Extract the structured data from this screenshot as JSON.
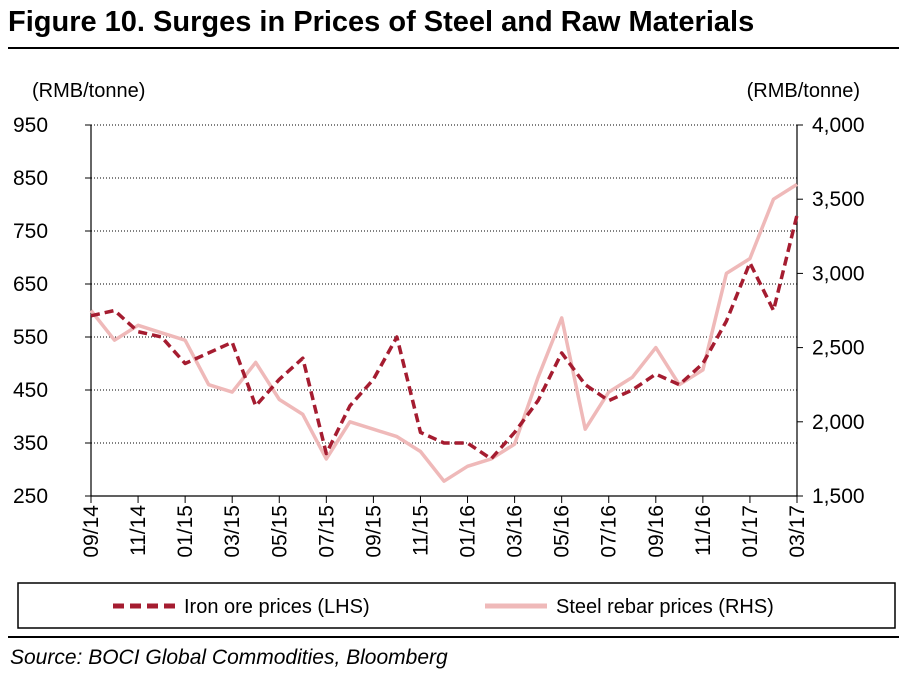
{
  "figure": {
    "title": "Figure 10. Surges in Prices of Steel and Raw Materials",
    "source": "Source: BOCI Global Commodities, Bloomberg"
  },
  "colors": {
    "iron_ore": "#a51c30",
    "rebar": "#efb9b9",
    "grid": "#000000"
  },
  "chart_data": {
    "type": "line",
    "title": "Surges in Prices of Steel and Raw Materials",
    "left_unit": "(RMB/tonne)",
    "right_unit": "(RMB/tonne)",
    "left_ylim": [
      250,
      950
    ],
    "left_ticks": [
      "950",
      "850",
      "750",
      "650",
      "550",
      "450",
      "350",
      "250"
    ],
    "right_ylim": [
      1500,
      4000
    ],
    "right_ticks": [
      "4,000",
      "3,500",
      "3,000",
      "2,500",
      "2,000",
      "1,500"
    ],
    "x_range": [
      "2014-09",
      "2017-03"
    ],
    "x_ticks": [
      "09/14",
      "11/14",
      "01/15",
      "03/15",
      "05/15",
      "07/15",
      "09/15",
      "11/15",
      "01/16",
      "03/16",
      "05/16",
      "07/16",
      "09/16",
      "11/16",
      "01/17",
      "03/17"
    ],
    "grid": "horizontal dotted",
    "legend_position": "bottom",
    "series": [
      {
        "name": "Iron ore prices (LHS)",
        "axis": "left",
        "style": "dashed",
        "x": [
          "2014-09",
          "2014-10",
          "2014-11",
          "2014-12",
          "2015-01",
          "2015-02",
          "2015-03",
          "2015-04",
          "2015-05",
          "2015-06",
          "2015-07",
          "2015-08",
          "2015-09",
          "2015-10",
          "2015-11",
          "2015-12",
          "2016-01",
          "2016-02",
          "2016-03",
          "2016-04",
          "2016-05",
          "2016-06",
          "2016-07",
          "2016-08",
          "2016-09",
          "2016-10",
          "2016-11",
          "2016-12",
          "2017-01",
          "2017-02",
          "2017-03"
        ],
        "values": [
          590,
          600,
          560,
          550,
          500,
          520,
          540,
          420,
          470,
          510,
          330,
          420,
          470,
          550,
          370,
          350,
          350,
          320,
          370,
          430,
          520,
          460,
          430,
          450,
          480,
          460,
          500,
          580,
          690,
          600,
          780
        ]
      },
      {
        "name": "Steel rebar prices (RHS)",
        "axis": "right",
        "style": "solid",
        "x": [
          "2014-09",
          "2014-10",
          "2014-11",
          "2014-12",
          "2015-01",
          "2015-02",
          "2015-03",
          "2015-04",
          "2015-05",
          "2015-06",
          "2015-07",
          "2015-08",
          "2015-09",
          "2015-10",
          "2015-11",
          "2015-12",
          "2016-01",
          "2016-02",
          "2016-03",
          "2016-04",
          "2016-05",
          "2016-06",
          "2016-07",
          "2016-08",
          "2016-09",
          "2016-10",
          "2016-11",
          "2016-12",
          "2017-01",
          "2017-02",
          "2017-03"
        ],
        "values": [
          2750,
          2550,
          2650,
          2600,
          2550,
          2250,
          2200,
          2400,
          2150,
          2050,
          1750,
          2000,
          1950,
          1900,
          1800,
          1600,
          1700,
          1750,
          1850,
          2300,
          2700,
          1950,
          2200,
          2300,
          2500,
          2250,
          2350,
          3000,
          3100,
          3500,
          3600
        ]
      }
    ]
  }
}
